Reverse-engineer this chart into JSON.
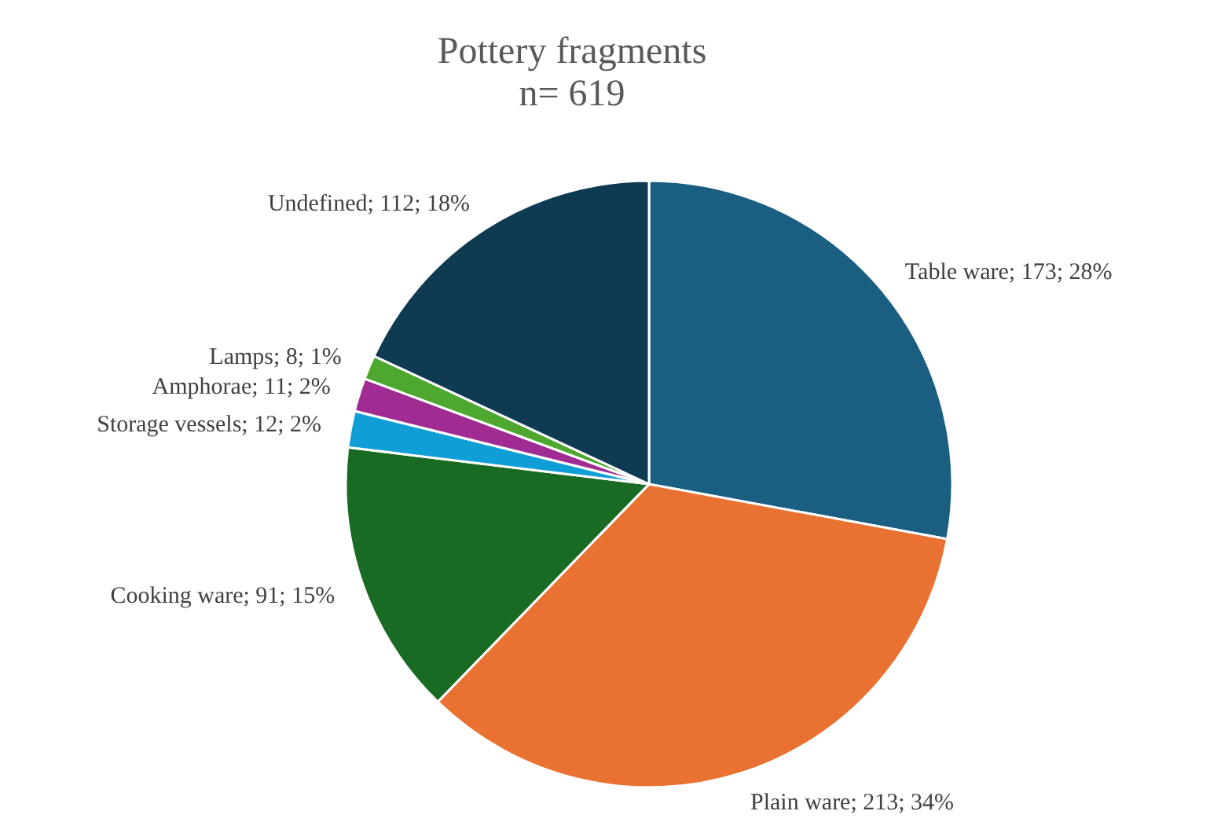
{
  "chart_data": {
    "type": "pie",
    "title": "Pottery fragments",
    "subtitle": "n= 619",
    "categories": [
      "Table ware",
      "Plain ware",
      "Cooking ware",
      "Storage vessels",
      "Amphorae",
      "Lamps",
      "Undefined"
    ],
    "values": [
      173,
      213,
      91,
      12,
      11,
      8,
      112
    ],
    "colors": [
      "#1a5e82",
      "#e97132",
      "#196b24",
      "#0f9ed5",
      "#a02b93",
      "#4ea72e",
      "#0e3a52"
    ],
    "value_labels": [
      "173; 28%",
      "213; 34%",
      "91; 15%",
      "12; 2%",
      "11; 2%",
      "8; 1%",
      "112; 18%"
    ],
    "legend": false
  }
}
